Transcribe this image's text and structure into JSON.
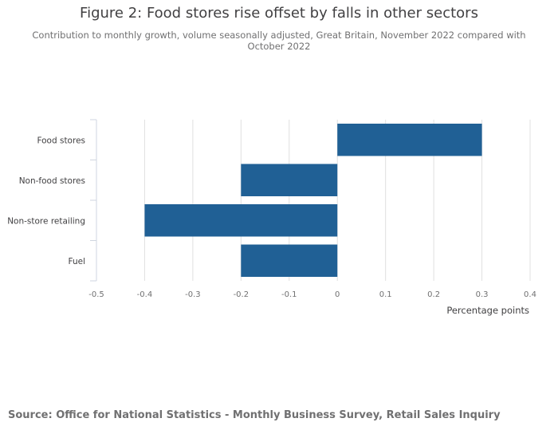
{
  "chart_data": {
    "type": "bar",
    "orientation": "horizontal",
    "title": "Figure 2: Food stores rise offset by falls in other sectors",
    "subtitle": "Contribution to monthly growth, volume seasonally adjusted, Great Britain, November 2022 compared with October 2022",
    "categories": [
      "Food stores",
      "Non-food stores",
      "Non-store retailing",
      "Fuel"
    ],
    "values": [
      0.3,
      -0.2,
      -0.4,
      -0.2
    ],
    "xlabel": "Percentage points",
    "ylabel": "",
    "xlim": [
      -0.5,
      0.4
    ],
    "xticks": [
      -0.5,
      -0.4,
      -0.3,
      -0.2,
      -0.1,
      0,
      0.1,
      0.2,
      0.3,
      0.4
    ],
    "xtick_labels": [
      "-0.5",
      "-0.4",
      "-0.3",
      "-0.2",
      "-0.1",
      "0",
      "0.1",
      "0.2",
      "0.3",
      "0.4"
    ],
    "grid": true,
    "bar_color": "#206095"
  },
  "source": "Source: Office for National Statistics - Monthly Business Survey, Retail Sales Inquiry"
}
